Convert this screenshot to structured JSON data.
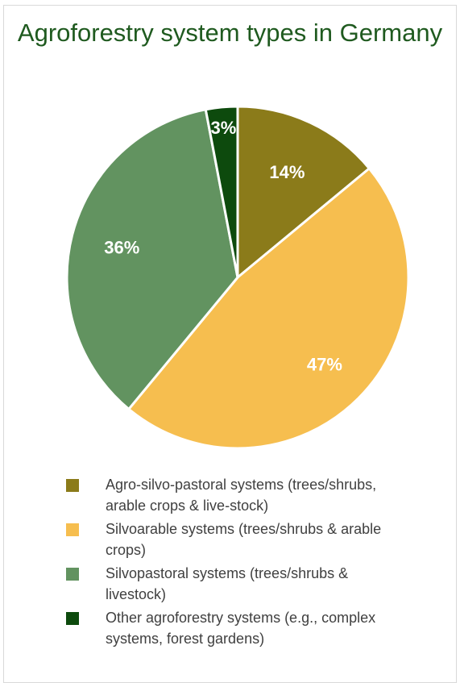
{
  "chart_data": {
    "type": "pie",
    "title": "Agroforestry system types in Germany",
    "series": [
      {
        "name": "Agro-silvo-pastoral systems (trees/shrubs, arable crops & live-stock)",
        "value": 14,
        "label": "14%",
        "color": "#8b7b1a"
      },
      {
        "name": "Silvoarable systems (trees/shrubs & arable crops)",
        "value": 47,
        "label": "47%",
        "color": "#f6be4f"
      },
      {
        "name": "Silvopastoral systems (trees/shrubs & livestock)",
        "value": 36,
        "label": "36%",
        "color": "#629360"
      },
      {
        "name": "Other agroforestry systems (e.g., complex systems, forest gardens)",
        "value": 3,
        "label": "3%",
        "color": "#0d4a0d"
      }
    ],
    "legend_position": "bottom",
    "start_angle": "12 o'clock",
    "direction": "clockwise"
  }
}
